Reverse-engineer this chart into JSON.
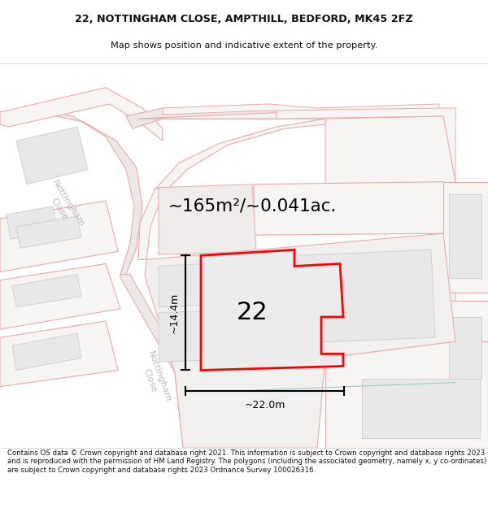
{
  "title_line1": "22, NOTTINGHAM CLOSE, AMPTHILL, BEDFORD, MK45 2FZ",
  "title_line2": "Map shows position and indicative extent of the property.",
  "area_text": "~165m²/~0.041ac.",
  "label_number": "22",
  "dim_width": "~22.0m",
  "dim_height": "~14.4m",
  "footer_text": "Contains OS data © Crown copyright and database right 2021. This information is subject to Crown copyright and database rights 2023 and is reproduced with the permission of HM Land Registry. The polygons (including the associated geometry, namely x, y co-ordinates) are subject to Crown copyright and database rights 2023 Ordnance Survey 100026316.",
  "map_bg": "#f7f7f5",
  "pink_edge": "#e8aaaa",
  "pink_fill": "#f7f4f4",
  "gray_fill": "#e8e8e8",
  "gray_edge": "#d0d0d0",
  "plot_fill": "#eeeeee",
  "plot_edge": "#ff0000",
  "road_bg": "#f0eded",
  "dim_color": "#111111",
  "title_color": "#111111",
  "footer_color": "#111111",
  "road_label_color": "#c0b8b8",
  "teal_line": "#a0c8c8"
}
